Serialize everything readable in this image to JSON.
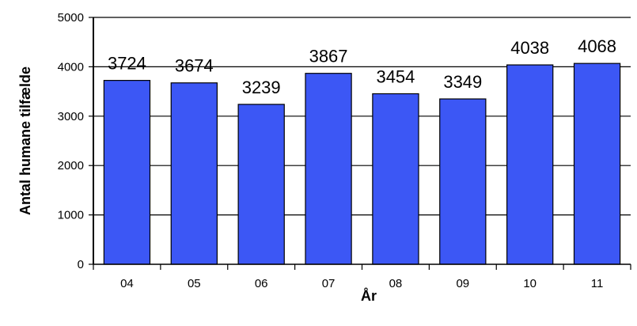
{
  "chart_data": {
    "type": "bar",
    "categories": [
      "04",
      "05",
      "06",
      "07",
      "08",
      "09",
      "10",
      "11"
    ],
    "values": [
      3724,
      3674,
      3239,
      3867,
      3454,
      3349,
      4038,
      4068
    ],
    "data_labels": [
      "3724",
      "3674",
      "3239",
      "3867",
      "3454",
      "3349",
      "4038",
      "4068"
    ],
    "yticks": [
      "0",
      "1000",
      "2000",
      "3000",
      "4000",
      "5000"
    ],
    "ytick_values": [
      0,
      1000,
      2000,
      3000,
      4000,
      5000
    ],
    "xlabel": "År",
    "ylabel": "Antal humane tilfælde",
    "ylim": [
      0,
      5000
    ],
    "grid": true,
    "bar_color": "#3C57F5",
    "bar_edge_color": "#000000"
  }
}
